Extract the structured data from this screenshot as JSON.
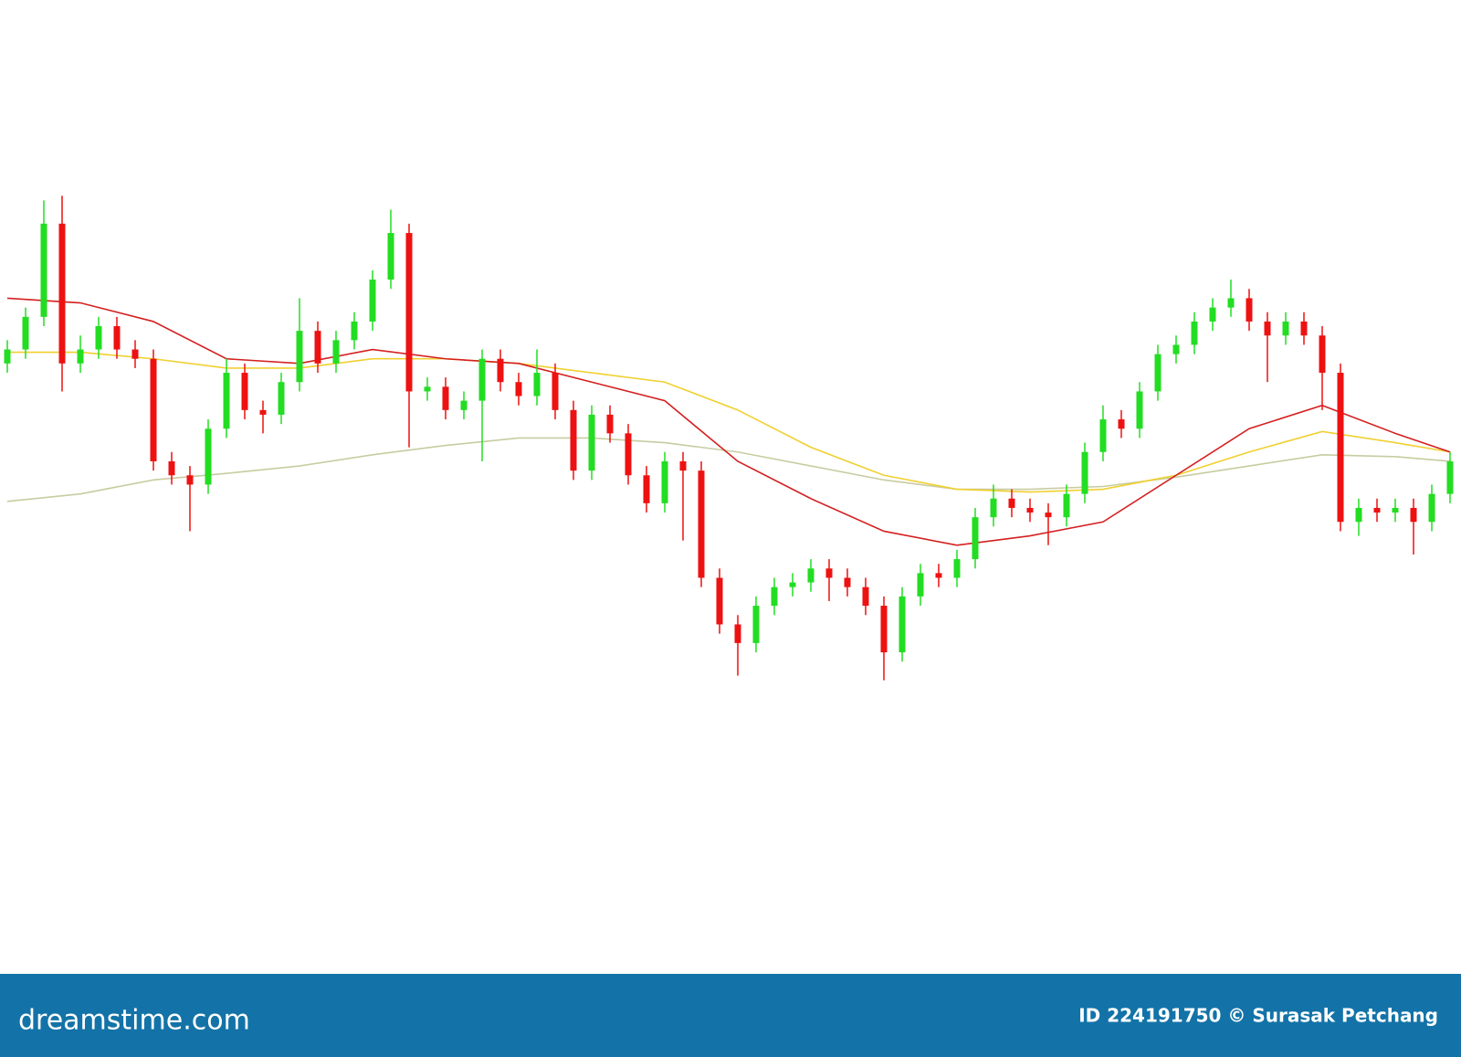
{
  "chart_data": {
    "type": "candlestick",
    "open": [
      65.5,
      67,
      70.5,
      80.5,
      65.5,
      67,
      69.5,
      67,
      66,
      55,
      53.5,
      52.5,
      58.5,
      64.5,
      60.5,
      60,
      63.5,
      69,
      65.5,
      68,
      70,
      74.5,
      79.5,
      62.5,
      63,
      60.5,
      61.5,
      66,
      63.5,
      62,
      64.5,
      60.5,
      54,
      60,
      58,
      53.5,
      50.5,
      55,
      54,
      42.5,
      37.5,
      35.5,
      39.5,
      41.5,
      42,
      43.5,
      42.5,
      41.5,
      39.5,
      34.5,
      40.5,
      43,
      42.5,
      44.5,
      49,
      51,
      50,
      49.5,
      49,
      51.5,
      56,
      59.5,
      58.5,
      62.5,
      66.5,
      67.5,
      70,
      71.5,
      72.5,
      70,
      68.5,
      70,
      68.5,
      64.5,
      48.5,
      50,
      49.5,
      50,
      48.5,
      51.5
    ],
    "high": [
      68,
      71.5,
      83,
      83.5,
      68.5,
      70.5,
      70.5,
      68,
      67,
      56,
      54.5,
      59.5,
      66,
      65.5,
      61.5,
      64.5,
      72.5,
      70,
      69,
      71,
      75.5,
      82,
      80.5,
      64,
      64,
      62.5,
      67,
      67,
      64.5,
      67,
      65.5,
      61.5,
      61,
      61,
      59,
      54.5,
      56,
      56,
      55,
      43.5,
      38.5,
      40.5,
      42.5,
      43,
      44.5,
      44.5,
      43.5,
      42.5,
      40.5,
      41.5,
      44,
      44,
      45.5,
      50,
      52.5,
      52,
      51,
      50.5,
      52.5,
      57,
      61,
      60.5,
      63.5,
      67.5,
      68.5,
      71,
      72.5,
      74.5,
      73.5,
      71,
      71,
      71,
      69.5,
      65.5,
      51,
      51,
      51,
      51,
      52.5,
      56
    ],
    "low": [
      64.5,
      66,
      69.5,
      62.5,
      64.5,
      66,
      66,
      65,
      54,
      52.5,
      47.5,
      51.5,
      57.5,
      59.5,
      58,
      59,
      62.5,
      64.5,
      64.5,
      67,
      69,
      73.5,
      56.5,
      61.5,
      59.5,
      59.5,
      55,
      62.5,
      61,
      61,
      59.5,
      53,
      53,
      57,
      52.5,
      49.5,
      49.5,
      46.5,
      41.5,
      36.5,
      32,
      34.5,
      38.5,
      40.5,
      41,
      40,
      40.5,
      38.5,
      31.5,
      33.5,
      39.5,
      41.5,
      41.5,
      43.5,
      48,
      49,
      48.5,
      46,
      48,
      50.5,
      55,
      57.5,
      57.5,
      61.5,
      65.5,
      66.5,
      69,
      70.5,
      69,
      63.5,
      67.5,
      67.5,
      60.5,
      47.5,
      47,
      48.5,
      48.5,
      45,
      47.5,
      50.5
    ],
    "close": [
      67,
      70.5,
      80.5,
      65.5,
      67,
      69.5,
      67,
      66,
      55,
      53.5,
      52.5,
      58.5,
      64.5,
      60.5,
      60,
      63.5,
      69,
      65.5,
      68,
      70,
      74.5,
      79.5,
      62.5,
      63,
      60.5,
      61.5,
      66,
      63.5,
      62,
      64.5,
      60.5,
      54,
      60,
      58,
      53.5,
      50.5,
      55,
      54,
      42.5,
      37.5,
      35.5,
      39.5,
      41.5,
      42,
      43.5,
      42.5,
      41.5,
      39.5,
      34.5,
      40.5,
      43,
      42.5,
      44.5,
      49,
      51,
      50,
      49.5,
      49,
      51.5,
      56,
      59.5,
      58.5,
      62.5,
      66.5,
      67.5,
      70,
      71.5,
      72.5,
      70,
      68.5,
      70,
      68.5,
      64.5,
      48.5,
      50,
      49.5,
      50,
      48.5,
      51.5,
      55
    ],
    "up_color": "#22dd22",
    "down_color": "#ee1111",
    "ylim": [
      0,
      104.5
    ],
    "ma_x": [
      0,
      4,
      8,
      12,
      16,
      20,
      24,
      28,
      32,
      36,
      40,
      44,
      48,
      52,
      56,
      60,
      64,
      68,
      72,
      76,
      79
    ],
    "series": [
      {
        "color": "#c8cca0",
        "values": [
          50.7,
          51.5,
          53,
          53.7,
          54.5,
          55.7,
          56.7,
          57.5,
          57.5,
          57,
          56,
          54.5,
          53,
          52,
          52,
          52.3,
          53.3,
          54.5,
          55.7,
          55.5,
          55
        ]
      },
      {
        "color": "#f0d030",
        "values": [
          66.7,
          66.7,
          66,
          65,
          65,
          66,
          66,
          65.5,
          64.5,
          63.5,
          60.5,
          56.5,
          53.5,
          52,
          51.7,
          52,
          53.5,
          56,
          58.2,
          57,
          56
        ]
      },
      {
        "color": "#d42020",
        "values": [
          72.5,
          72,
          70,
          66,
          65.5,
          67,
          66,
          65.5,
          63.5,
          61.5,
          55,
          51,
          47.5,
          46,
          47,
          48.5,
          53.5,
          58.5,
          61,
          58,
          56
        ]
      }
    ]
  },
  "footer": {
    "logo": "dreamstime.com",
    "credit": "ID 224191750 © Surasak Petchang"
  }
}
